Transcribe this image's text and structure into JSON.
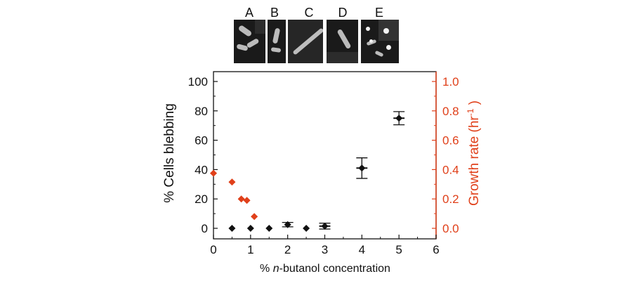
{
  "panels": {
    "labels": [
      "A",
      "B",
      "C",
      "D",
      "E"
    ]
  },
  "colors": {
    "left_series": "#111111",
    "right_series": "#e0401a",
    "right_axis": "#e0401a",
    "axis": "#111111"
  },
  "chart_data": {
    "type": "scatter",
    "xlabel_prefix": "% ",
    "xlabel_italic": "n",
    "xlabel_suffix": "-butanol concentration",
    "ylabel_left": "% Cells blebbing",
    "ylabel_right_main": "Growth rate (hr",
    "ylabel_right_sup": "-1",
    "ylabel_right_end": " )",
    "xlim": [
      0,
      6
    ],
    "ylim_left": [
      0,
      100
    ],
    "ylim_right": [
      0,
      1.0
    ],
    "x_ticks": [
      "0",
      "1",
      "2",
      "3",
      "4",
      "5",
      "6"
    ],
    "y_left_ticks": [
      "0",
      "20",
      "40",
      "60",
      "80",
      "100"
    ],
    "y_right_ticks": [
      "0.0",
      "0.2",
      "0.4",
      "0.6",
      "0.8",
      "1.0"
    ],
    "series": [
      {
        "axis": "left",
        "x": [
          0.5,
          1.0,
          1.5,
          2.0,
          2.5,
          3.0,
          4.0,
          5.0
        ],
        "y": [
          0,
          0,
          0,
          2.5,
          0,
          1.5,
          41,
          75
        ],
        "yerr": [
          0,
          0,
          0,
          1.5,
          0,
          2,
          7,
          4.5
        ],
        "xerr": [
          0,
          0,
          0,
          0,
          0,
          0.15,
          0.15,
          0.15
        ]
      },
      {
        "axis": "right",
        "x": [
          0.0,
          0.5,
          0.75,
          0.9,
          1.1
        ],
        "y": [
          0.375,
          0.315,
          0.2,
          0.19,
          0.08
        ],
        "xerr": [
          0.08,
          0.08,
          0.08,
          0.08,
          0.08
        ],
        "yerr": [
          0,
          0,
          0,
          0,
          0
        ]
      }
    ]
  }
}
